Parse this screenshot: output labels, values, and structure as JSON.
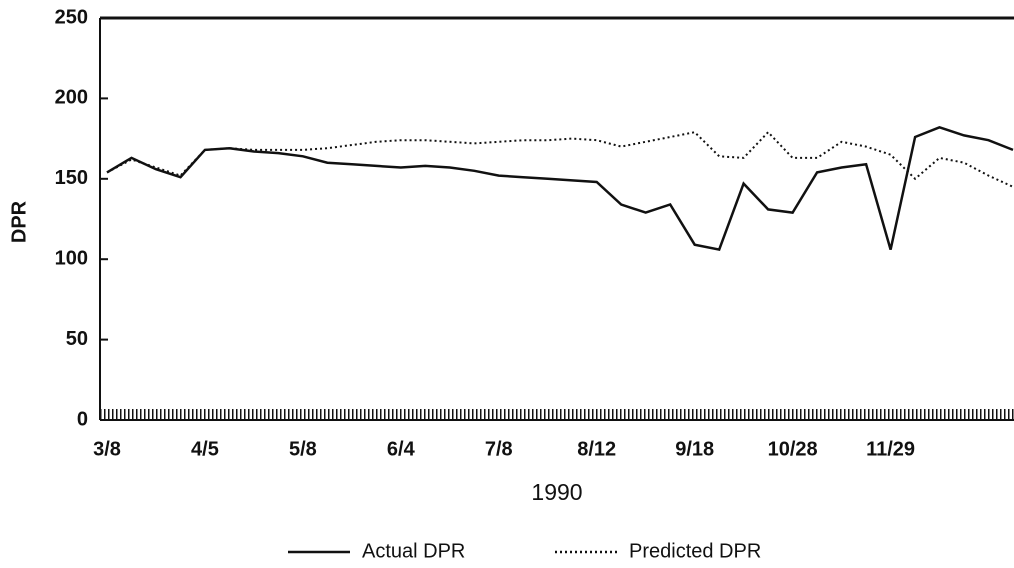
{
  "chart_data": {
    "type": "line",
    "y_label": "DPR",
    "x_label": "1990",
    "categories": [
      "3/8",
      null,
      null,
      null,
      "4/5",
      null,
      null,
      null,
      "5/8",
      null,
      null,
      null,
      "6/4",
      null,
      null,
      null,
      "7/8",
      null,
      null,
      null,
      "8/12",
      null,
      null,
      null,
      "9/18",
      null,
      null,
      null,
      "10/28",
      null,
      null,
      null,
      "11/29",
      null,
      null,
      null,
      null,
      null
    ],
    "series": [
      {
        "name": "Actual DPR",
        "color": "#111111",
        "dash": "solid",
        "values": [
          154,
          163,
          156,
          151,
          168,
          169,
          167,
          166,
          164,
          160,
          159,
          158,
          157,
          158,
          157,
          155,
          152,
          151,
          150,
          149,
          148,
          134,
          129,
          134,
          109,
          106,
          147,
          131,
          129,
          154,
          157,
          159,
          106,
          176,
          182,
          177,
          174,
          168
        ]
      },
      {
        "name": "Predicted DPR",
        "color": "#111111",
        "dash": "dotted",
        "values": [
          154,
          162,
          157,
          152,
          168,
          169,
          168,
          168,
          168,
          169,
          171,
          173,
          174,
          174,
          173,
          172,
          173,
          174,
          174,
          175,
          174,
          170,
          173,
          176,
          179,
          164,
          163,
          179,
          163,
          163,
          173,
          170,
          165,
          150,
          163,
          160,
          152,
          145
        ]
      }
    ],
    "ylim": [
      0,
      250
    ],
    "yticks": [
      0,
      50,
      100,
      150,
      200,
      250
    ]
  }
}
